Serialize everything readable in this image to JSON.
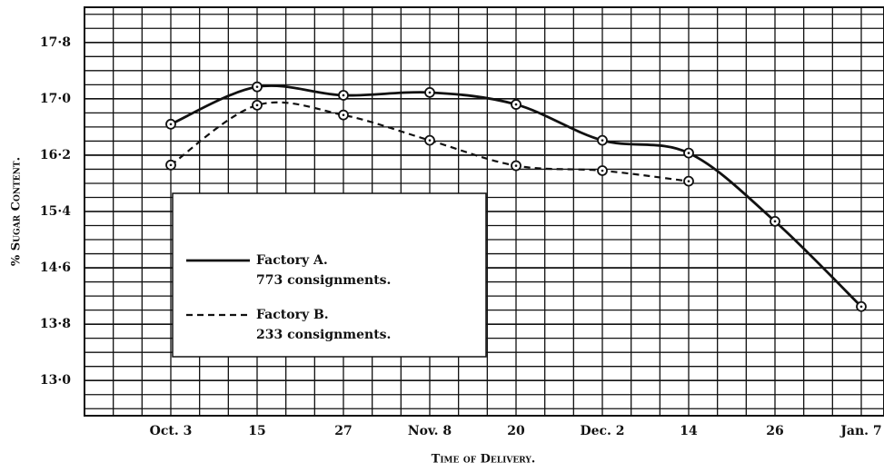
{
  "chart_data": {
    "type": "line",
    "x_label": "Time of Delivery.",
    "y_label": "% Sugar Content.",
    "categories": [
      "Oct. 3",
      "15",
      "27",
      "Nov. 8",
      "20",
      "Dec. 2",
      "14",
      "26",
      "Jan. 7"
    ],
    "series": [
      {
        "name": "Factory A.",
        "description": "773 consignments.",
        "color": "#111111",
        "dash": "solid",
        "values": [
          16.64,
          17.17,
          17.05,
          17.09,
          16.92,
          16.41,
          16.23,
          15.26,
          14.05
        ]
      },
      {
        "name": "Factory B.",
        "description": "233 consignments.",
        "color": "#111111",
        "dash": "dashed",
        "values": [
          16.06,
          16.91,
          16.77,
          16.41,
          16.05,
          15.98,
          15.83,
          null,
          null
        ]
      }
    ],
    "ylim": [
      12.5,
      18.3
    ],
    "yticks": [
      {
        "value": 13.0,
        "label": "13·0"
      },
      {
        "value": 13.8,
        "label": "13·8"
      },
      {
        "value": 14.6,
        "label": "14·6"
      },
      {
        "value": 15.4,
        "label": "15·4"
      },
      {
        "value": 16.2,
        "label": "16·2"
      },
      {
        "value": 17.0,
        "label": "17·0"
      },
      {
        "value": 17.8,
        "label": "17·8"
      }
    ],
    "grid": true
  }
}
